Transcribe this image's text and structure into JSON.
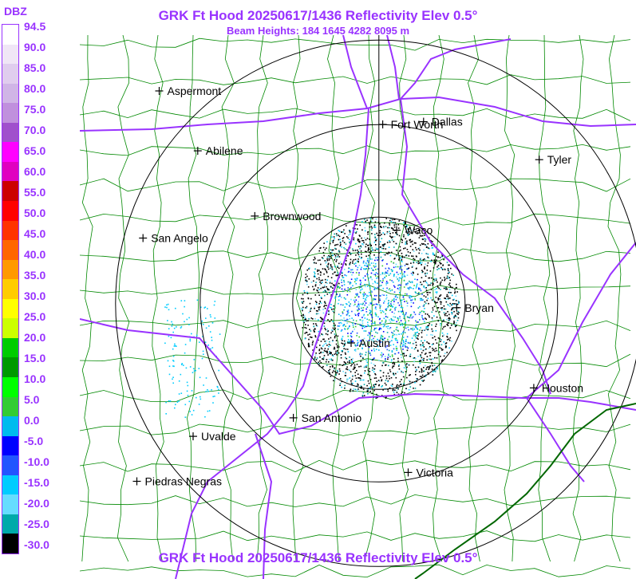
{
  "title": "GRK Ft Hood 20250617/1436 Reflectivity Elev 0.5°",
  "subtitle": "Beam Heights: 184 1645 4282 8095 m",
  "footer": "GRK Ft Hood 20250617/1436 Reflectivity Elev 0.5°",
  "legend": {
    "unit": "DBZ",
    "ticks": [
      "94.5",
      "90.0",
      "85.0",
      "80.0",
      "75.0",
      "70.0",
      "65.0",
      "60.0",
      "55.0",
      "50.0",
      "45.0",
      "40.0",
      "35.0",
      "30.0",
      "25.0",
      "20.0",
      "15.0",
      "10.0",
      "5.0",
      "0.0",
      "-5.0",
      "-10.0",
      "-15.0",
      "-20.0",
      "-25.0",
      "-30.0"
    ],
    "colors": [
      "#ffffff",
      "#f0e6f6",
      "#e0cdee",
      "#d0b5e6",
      "#c090dd",
      "#a050cc",
      "#ff00ff",
      "#e000c0",
      "#cc0000",
      "#ff0000",
      "#ff3300",
      "#ff6600",
      "#ff9900",
      "#ffcc00",
      "#ffff00",
      "#ccff00",
      "#00cc00",
      "#009900",
      "#00ff00",
      "#33cc33",
      "#00bbee",
      "#0000ff",
      "#2255ff",
      "#00ccff",
      "#66ddff",
      "#00aaaa",
      "#000000"
    ]
  },
  "cities": [
    {
      "name": "Aspermont",
      "lon": -100.23,
      "lat": 33.13
    },
    {
      "name": "Fort Worth",
      "lon": -97.33,
      "lat": 32.75
    },
    {
      "name": "Dallas",
      "lon": -96.8,
      "lat": 32.78
    },
    {
      "name": "Abilene",
      "lon": -99.73,
      "lat": 32.45
    },
    {
      "name": "Tyler",
      "lon": -95.3,
      "lat": 32.35
    },
    {
      "name": "Brownwood",
      "lon": -98.99,
      "lat": 31.71
    },
    {
      "name": "Waco",
      "lon": -97.15,
      "lat": 31.55
    },
    {
      "name": "San Angelo",
      "lon": -100.44,
      "lat": 31.46
    },
    {
      "name": "Bryan",
      "lon": -96.37,
      "lat": 30.67
    },
    {
      "name": "Austin",
      "lon": -97.74,
      "lat": 30.27
    },
    {
      "name": "Houston",
      "lon": -95.37,
      "lat": 29.76
    },
    {
      "name": "San Antonio",
      "lon": -98.49,
      "lat": 29.42
    },
    {
      "name": "Uvalde",
      "lon": -99.79,
      "lat": 29.21
    },
    {
      "name": "Victoria",
      "lon": -97.0,
      "lat": 28.8
    },
    {
      "name": "Piedras Negras",
      "lon": -100.52,
      "lat": 28.7
    }
  ],
  "radar": {
    "site": "GRK",
    "lon": -97.38,
    "lat": 30.72
  },
  "colors": {
    "title": "#9933ff",
    "highways": "#9933ff",
    "counties": "#008800",
    "rings": "#000000"
  }
}
